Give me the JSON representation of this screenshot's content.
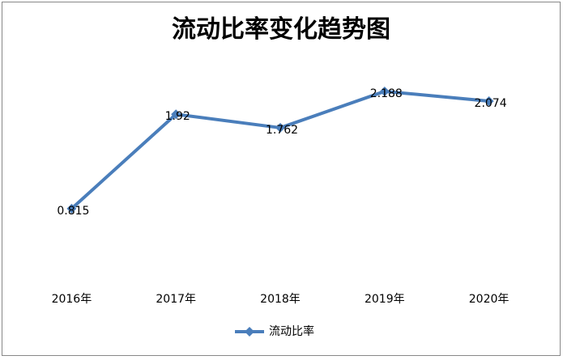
{
  "chart_data": {
    "type": "line",
    "title": "流动比率变化趋势图",
    "categories": [
      "2016年",
      "2017年",
      "2018年",
      "2019年",
      "2020年"
    ],
    "series": [
      {
        "name": "流动比率",
        "color": "#4a7ebb",
        "values": [
          0.815,
          1.92,
          1.762,
          2.188,
          2.074
        ]
      }
    ],
    "ylim": [
      0,
      2.5
    ],
    "legend": "bottom"
  }
}
